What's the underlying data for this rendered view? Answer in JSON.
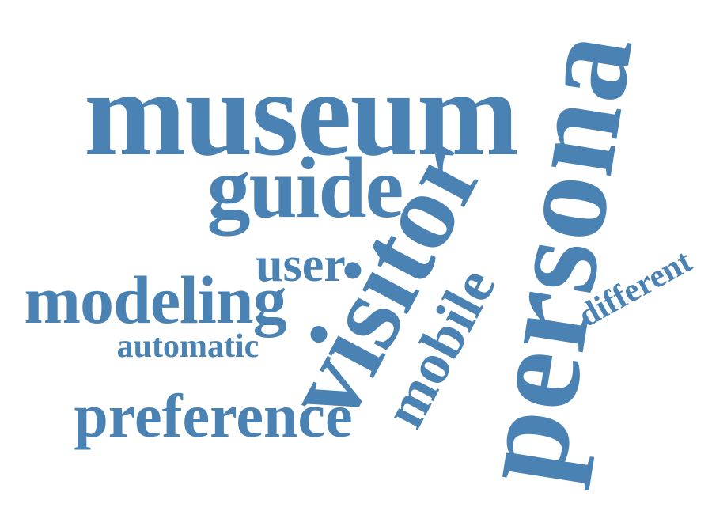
{
  "word_cloud": {
    "color": "#4a82b4",
    "words": {
      "museum": "museum",
      "guide": "guide",
      "user": "user",
      "modeling": "modeling",
      "automatic": "automatic",
      "preference": "preference",
      "visitor": "visitor",
      "mobile": "mobile",
      "persona": "persona",
      "different": "different"
    }
  }
}
